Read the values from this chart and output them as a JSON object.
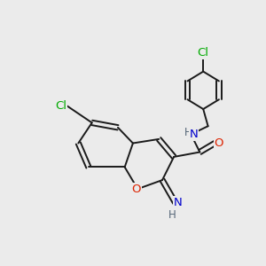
{
  "bg_color": "#ebebeb",
  "bond_color": "#1a1a1a",
  "bond_width": 1.4,
  "atom_colors": {
    "Cl": "#00aa00",
    "O": "#dd2200",
    "N": "#0000cc",
    "H": "#556677",
    "C": "#1a1a1a"
  },
  "fig_size": [
    3.0,
    3.0
  ],
  "dpi": 100,
  "xlim": [
    0,
    300
  ],
  "ylim": [
    0,
    300
  ]
}
